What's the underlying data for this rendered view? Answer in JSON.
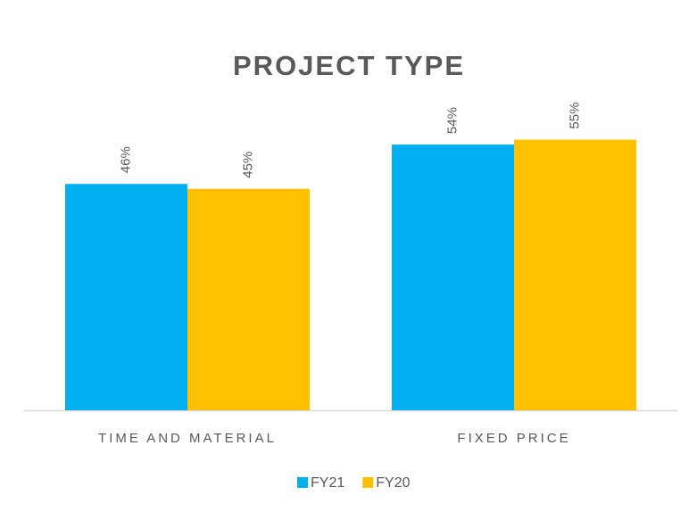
{
  "chart_data": {
    "type": "bar",
    "title": "PROJECT TYPE",
    "categories": [
      "TIME AND MATERIAL",
      "FIXED PRICE"
    ],
    "series": [
      {
        "name": "FY21",
        "color": "#00b0f0",
        "values": [
          46,
          54
        ],
        "value_labels": [
          "46%",
          "54%"
        ]
      },
      {
        "name": "FY20",
        "color": "#ffc000",
        "values": [
          45,
          55
        ],
        "value_labels": [
          "45%",
          "55%"
        ]
      }
    ],
    "ylim": [
      0,
      60
    ],
    "legend": "bottom"
  }
}
